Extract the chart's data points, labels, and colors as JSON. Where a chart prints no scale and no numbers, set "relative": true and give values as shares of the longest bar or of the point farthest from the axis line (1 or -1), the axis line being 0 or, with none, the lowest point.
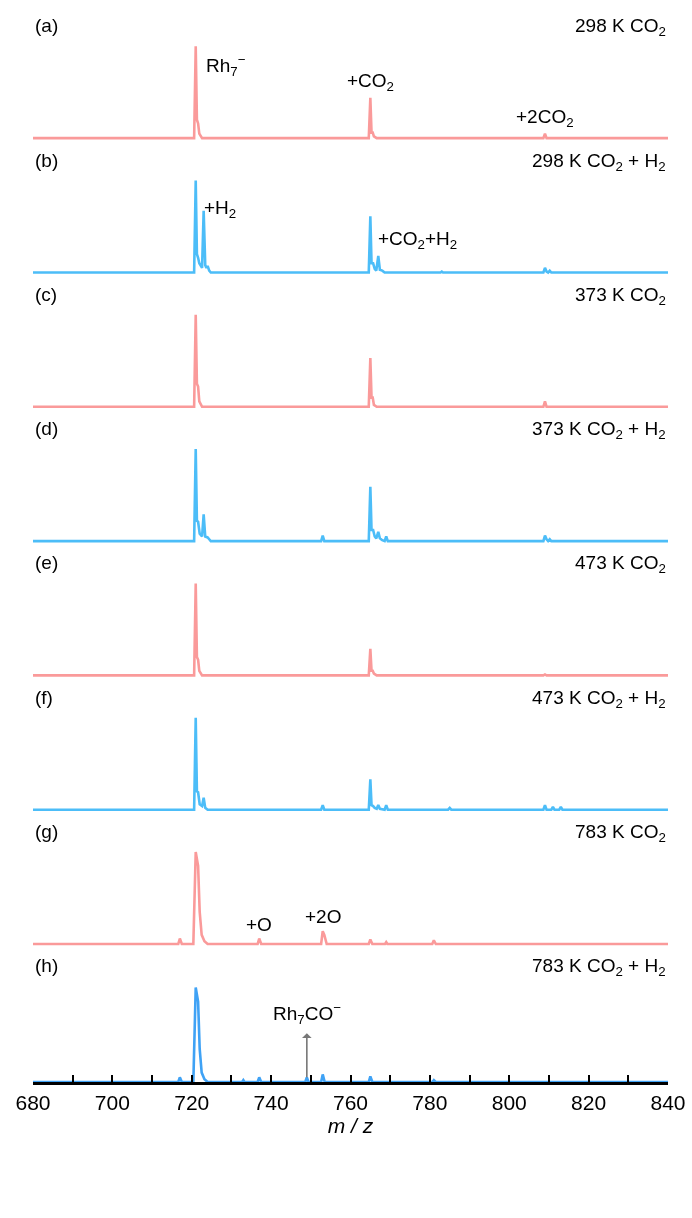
{
  "chart_data": [
    {
      "type": "line",
      "relative": true,
      "xlim": [
        680,
        840
      ],
      "tick_labels": false,
      "annotations": [
        "(a)",
        "298 K CO$_{2}$",
        {
          "text": "Rh$_{7}$$^{−}$",
          "x": 721,
          "y": 1
        },
        {
          "text": "+CO$_{2}$",
          "x": 765,
          "y": 0.44
        },
        {
          "text": "+2CO$_{2}$",
          "x": 809,
          "y": 0.05
        }
      ],
      "series": [
        {
          "color": "#fa9a9a",
          "x": [
            680,
            720.6,
            721,
            721.3,
            721.6,
            721.9,
            722.6,
            764.6,
            765,
            765.3,
            765.6,
            765.9,
            766.6,
            808.6,
            809,
            809.4,
            840
          ],
          "values": [
            0,
            0,
            1,
            0.2,
            0.16,
            0.05,
            0,
            0,
            0.44,
            0.06,
            0.06,
            0.02,
            0,
            0,
            0.05,
            0,
            0
          ]
        }
      ]
    },
    {
      "type": "line",
      "relative": true,
      "xlim": [
        680,
        840
      ],
      "tick_labels": false,
      "annotations": [
        "(b)",
        "298 K CO$_{2}$ + H$_{2}$",
        {
          "text": "+H$_{2}$",
          "x": 723,
          "y": 0.67
        },
        {
          "text": "+CO$_{2}$+H$_{2}$",
          "x": 767,
          "y": 0.18
        }
      ],
      "series": [
        {
          "color": "#4cbdf8",
          "x": [
            680,
            720.6,
            721,
            721.3,
            721.6,
            721.9,
            722.6,
            723,
            723.4,
            723.7,
            724,
            724.4,
            724.8,
            764.6,
            765,
            765.3,
            765.7,
            766.1,
            766.5,
            767,
            767.4,
            768,
            768.6,
            782.7,
            783,
            783.3,
            808.6,
            809,
            809.4,
            809.8,
            810.2,
            810.6,
            840
          ],
          "values": [
            0,
            0,
            1,
            0.2,
            0.16,
            0.1,
            0.05,
            0.67,
            0.08,
            0.05,
            0.07,
            0.02,
            0,
            0,
            0.61,
            0.1,
            0.1,
            0.04,
            0.02,
            0.18,
            0.03,
            0.02,
            0,
            0,
            0.01,
            0,
            0,
            0.05,
            0.01,
            0,
            0.02,
            0,
            0
          ]
        }
      ]
    },
    {
      "type": "line",
      "relative": true,
      "xlim": [
        680,
        840
      ],
      "tick_labels": false,
      "annotations": [
        "(c)",
        "373 K CO$_{2}$"
      ],
      "series": [
        {
          "color": "#fa9a9a",
          "x": [
            680,
            720.6,
            721,
            721.3,
            721.6,
            721.9,
            722.6,
            764.6,
            765,
            765.3,
            765.6,
            765.9,
            766.6,
            808.6,
            809,
            809.4,
            840
          ],
          "values": [
            0,
            0,
            1,
            0.25,
            0.22,
            0.06,
            0,
            0,
            0.53,
            0.1,
            0.1,
            0.02,
            0,
            0,
            0.06,
            0,
            0
          ]
        }
      ]
    },
    {
      "type": "line",
      "relative": true,
      "xlim": [
        680,
        840
      ],
      "tick_labels": false,
      "annotations": [
        "(d)",
        "373 K CO$_{2}$ + H$_{2}$"
      ],
      "series": [
        {
          "color": "#4cbdf8",
          "x": [
            680,
            720.6,
            721,
            721.3,
            721.6,
            722,
            722.6,
            723,
            723.4,
            724,
            724.4,
            724.8,
            752.6,
            753,
            753.4,
            764.6,
            765,
            765.3,
            765.7,
            766.1,
            766.5,
            767,
            767.4,
            768,
            768.6,
            769,
            769.4,
            808.6,
            809,
            809.4,
            809.8,
            810.2,
            810.6,
            840
          ],
          "values": [
            0,
            0,
            1,
            0.22,
            0.21,
            0.08,
            0.05,
            0.29,
            0.05,
            0.04,
            0.02,
            0,
            0,
            0.06,
            0,
            0,
            0.59,
            0.12,
            0.12,
            0.05,
            0.03,
            0.1,
            0.03,
            0.01,
            0,
            0.05,
            0,
            0,
            0.06,
            0.02,
            0,
            0.02,
            0,
            0
          ]
        }
      ]
    },
    {
      "type": "line",
      "relative": true,
      "xlim": [
        680,
        840
      ],
      "tick_labels": false,
      "annotations": [
        "(e)",
        "473 K CO$_{2}$"
      ],
      "series": [
        {
          "color": "#fa9a9a",
          "x": [
            680,
            720.6,
            721,
            721.3,
            721.6,
            721.9,
            722.6,
            764.6,
            765,
            765.3,
            765.6,
            765.9,
            766.6,
            808.6,
            809,
            809.4,
            840
          ],
          "values": [
            0,
            0,
            1,
            0.2,
            0.17,
            0.05,
            0,
            0,
            0.29,
            0.05,
            0.05,
            0.02,
            0,
            0,
            0.01,
            0,
            0
          ]
        }
      ]
    },
    {
      "type": "line",
      "relative": true,
      "xlim": [
        680,
        840
      ],
      "tick_labels": false,
      "annotations": [
        "(f)",
        "473 K CO$_{2}$ + H$_{2}$"
      ],
      "series": [
        {
          "color": "#4cbdf8",
          "x": [
            680,
            720.6,
            721,
            721.3,
            721.6,
            722,
            722.6,
            723,
            723.4,
            724,
            752.6,
            753,
            753.4,
            764.6,
            765,
            765.3,
            765.7,
            766.1,
            766.6,
            767,
            767.4,
            768.6,
            769,
            769.4,
            784.6,
            785,
            785.4,
            808.6,
            809,
            809.4,
            810.6,
            811,
            811.4,
            812.6,
            813,
            813.4,
            840
          ],
          "values": [
            0,
            0,
            1,
            0.2,
            0.19,
            0.06,
            0.04,
            0.13,
            0.02,
            0,
            0,
            0.05,
            0,
            0,
            0.33,
            0.05,
            0.04,
            0.02,
            0.01,
            0.05,
            0.01,
            0,
            0.05,
            0,
            0,
            0.02,
            0,
            0,
            0.05,
            0,
            0,
            0.03,
            0,
            0,
            0.03,
            0,
            0
          ]
        }
      ]
    },
    {
      "type": "line",
      "relative": true,
      "xlim": [
        680,
        840
      ],
      "tick_labels": false,
      "annotations": [
        "(g)",
        "783 K CO$_{2}$",
        {
          "text": "+O",
          "x": 737,
          "y": 0.06
        },
        {
          "text": "+2O",
          "x": 753,
          "y": 0.14
        }
      ],
      "series": [
        {
          "color": "#fa9a9a",
          "x": [
            680,
            716.6,
            717,
            717.5,
            720.4,
            721,
            721.6,
            722,
            722.5,
            723.2,
            724,
            736.6,
            737,
            737.5,
            752.6,
            753,
            753.4,
            754,
            764.6,
            765,
            765.5,
            768.7,
            769,
            769.3,
            780.6,
            781,
            781.5,
            840
          ],
          "values": [
            0,
            0,
            0.06,
            0,
            0,
            1,
            0.85,
            0.35,
            0.1,
            0.03,
            0,
            0,
            0.06,
            0,
            0,
            0.14,
            0.1,
            0,
            0,
            0.05,
            0,
            0,
            0.02,
            0,
            0,
            0.04,
            0,
            0
          ]
        }
      ]
    },
    {
      "type": "line",
      "relative": true,
      "xlim": [
        680,
        840
      ],
      "xticks": [
        680,
        {
          "value": 690,
          "label": null
        },
        700,
        {
          "value": 710,
          "label": null
        },
        720,
        {
          "value": 730,
          "label": null
        },
        740,
        {
          "value": 750,
          "label": null
        },
        760,
        {
          "value": 770,
          "label": null
        },
        780,
        {
          "value": 790,
          "label": null
        },
        800,
        {
          "value": 810,
          "label": null
        },
        820,
        {
          "value": 830,
          "label": null
        },
        840
      ],
      "xlabel": "m / z",
      "annotations": [
        "(h)",
        "783 K CO$_{2}$ + H$_{2}$",
        {
          "text": "Rh$_{7}$CO$^{−}$",
          "x": 749,
          "y": 0.05
        }
      ],
      "series": [
        {
          "color": "#3fa2f5",
          "x": [
            680,
            716.6,
            717,
            717.5,
            720.4,
            721,
            721.6,
            722,
            722.5,
            723.2,
            724,
            732.7,
            733,
            733.3,
            736.6,
            737,
            737.5,
            748.6,
            749,
            749.4,
            752.6,
            753,
            753.5,
            764.6,
            765,
            765.5,
            780.6,
            781,
            781.5,
            840
          ],
          "values": [
            0,
            0,
            0.05,
            0,
            0,
            1,
            0.85,
            0.35,
            0.1,
            0.03,
            0,
            0,
            0.02,
            0,
            0,
            0.05,
            0,
            0,
            0.05,
            0,
            0,
            0.08,
            0,
            0,
            0.06,
            0,
            0,
            0.02,
            0,
            0
          ]
        }
      ]
    }
  ]
}
